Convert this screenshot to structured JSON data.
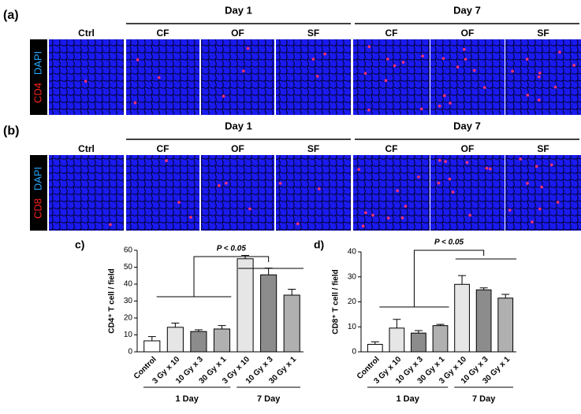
{
  "panels": [
    {
      "label": "(a)",
      "stain": [
        "CD4",
        "DAPI"
      ],
      "days": [
        "Day 1",
        "Day 7"
      ],
      "columns": [
        "Ctrl",
        "CF",
        "OF",
        "SF",
        "CF",
        "OF",
        "SF"
      ]
    },
    {
      "label": "(b)",
      "stain": [
        "CD8",
        "DAPI"
      ],
      "days": [
        "Day 1",
        "Day 7"
      ],
      "columns": [
        "Ctrl",
        "CF",
        "OF",
        "SF",
        "CF",
        "OF",
        "SF"
      ]
    }
  ],
  "chart_data": [
    {
      "type": "bar",
      "panel_label": "c)",
      "ylabel": "CD4⁺ T cell / field",
      "annotation": "P < 0.05",
      "categories": [
        "Control",
        "3 Gy x 10",
        "10 Gy x 3",
        "30 Gy x 1",
        "3 Gy x 10",
        "10 Gy x 3",
        "30 Gy x 1"
      ],
      "values": [
        6.5,
        14.5,
        12,
        13.5,
        55,
        45.5,
        33.5
      ],
      "errors": [
        2.5,
        2.5,
        1,
        2,
        2,
        4,
        3.5
      ],
      "colors": [
        "#ffffff",
        "#e6e6e6",
        "#8c8c8c",
        "#b0b0b0",
        "#e6e6e6",
        "#8c8c8c",
        "#b0b0b0"
      ],
      "groups": [
        "1 Day",
        "7 Day"
      ],
      "ylim": [
        0,
        60
      ],
      "yticks": [
        0,
        10,
        20,
        30,
        40,
        50,
        60
      ]
    },
    {
      "type": "bar",
      "panel_label": "d)",
      "ylabel": "CD8⁺ T cell / field",
      "annotation": "P < 0.05",
      "categories": [
        "Control",
        "3 Gy x 10",
        "10 Gy x 3",
        "30 Gy x 1",
        "3 Gy x 10",
        "10 Gy x 3",
        "30 Gy x 1"
      ],
      "values": [
        3,
        9.5,
        7.5,
        10.5,
        27,
        24.8,
        21.5
      ],
      "errors": [
        1,
        3.5,
        1,
        0.5,
        3.5,
        0.8,
        1.5
      ],
      "colors": [
        "#ffffff",
        "#e6e6e6",
        "#8c8c8c",
        "#b0b0b0",
        "#e6e6e6",
        "#8c8c8c",
        "#b0b0b0"
      ],
      "groups": [
        "1 Day",
        "7 Day"
      ],
      "ylim": [
        0,
        40
      ],
      "yticks": [
        0,
        10,
        20,
        30,
        40
      ]
    }
  ]
}
